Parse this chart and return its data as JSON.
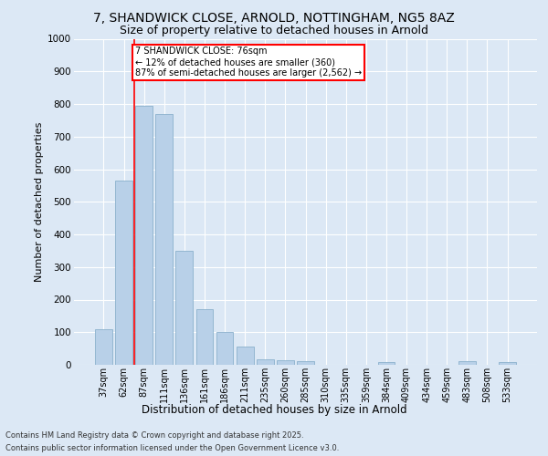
{
  "title_line1": "7, SHANDWICK CLOSE, ARNOLD, NOTTINGHAM, NG5 8AZ",
  "title_line2": "Size of property relative to detached houses in Arnold",
  "xlabel": "Distribution of detached houses by size in Arnold",
  "ylabel": "Number of detached properties",
  "categories": [
    "37sqm",
    "62sqm",
    "87sqm",
    "111sqm",
    "136sqm",
    "161sqm",
    "186sqm",
    "211sqm",
    "235sqm",
    "260sqm",
    "285sqm",
    "310sqm",
    "335sqm",
    "359sqm",
    "384sqm",
    "409sqm",
    "434sqm",
    "459sqm",
    "483sqm",
    "508sqm",
    "533sqm"
  ],
  "values": [
    110,
    565,
    795,
    770,
    350,
    170,
    100,
    55,
    18,
    13,
    10,
    0,
    0,
    0,
    8,
    0,
    0,
    0,
    10,
    0,
    8
  ],
  "bar_color": "#b8d0e8",
  "bar_edge_color": "#8ab0cc",
  "vline_x": 1.5,
  "vline_color": "red",
  "annotation_text": "7 SHANDWICK CLOSE: 76sqm\n← 12% of detached houses are smaller (360)\n87% of semi-detached houses are larger (2,562) →",
  "annotation_box_color": "white",
  "annotation_box_edge": "red",
  "background_color": "#dce8f5",
  "plot_bg_color": "#dce8f5",
  "footer_line1": "Contains HM Land Registry data © Crown copyright and database right 2025.",
  "footer_line2": "Contains public sector information licensed under the Open Government Licence v3.0.",
  "ylim": [
    0,
    1000
  ],
  "yticks": [
    0,
    100,
    200,
    300,
    400,
    500,
    600,
    700,
    800,
    900,
    1000
  ],
  "title1_fontsize": 10,
  "title2_fontsize": 9,
  "ylabel_fontsize": 8,
  "xlabel_fontsize": 8.5,
  "tick_fontsize": 7,
  "footer_fontsize": 6,
  "annot_fontsize": 7
}
